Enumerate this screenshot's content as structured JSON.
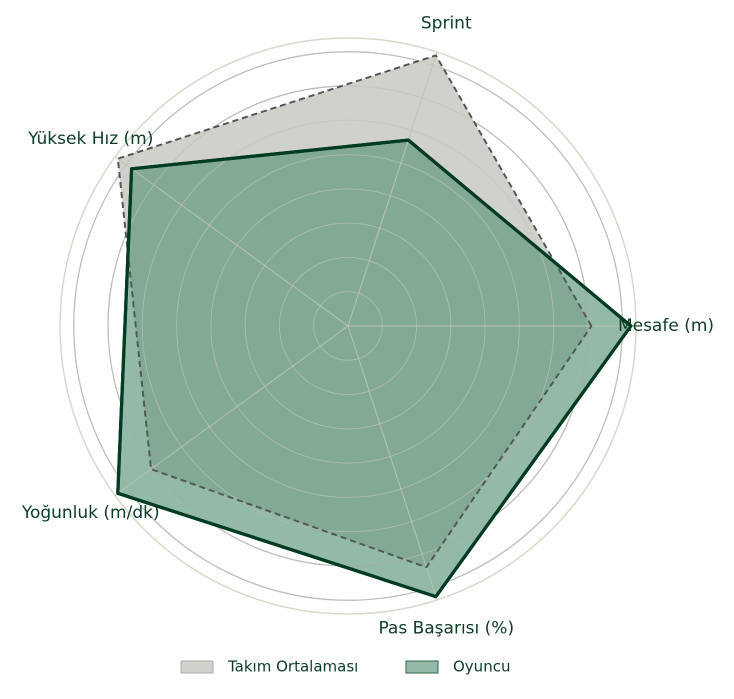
{
  "chart_data": {
    "type": "radar",
    "categories": [
      "Mesafe (m)",
      "Sprint",
      "Yüksek Hız (m)",
      "Yoğunluk (m/dk)",
      "Pas Başarısı (%)"
    ],
    "ylim": [
      0,
      8.4
    ],
    "yticks": [
      1,
      2,
      3,
      4,
      5,
      6,
      7,
      8
    ],
    "grid": true,
    "series": [
      {
        "name": "Takım Ortalaması",
        "color": "#c9c9c3",
        "values": [
          7.1,
          8.3,
          8.3,
          7.1,
          7.4
        ]
      },
      {
        "name": "Oyuncu",
        "color": "#4f9070",
        "values": [
          8.25,
          5.7,
          7.8,
          8.3,
          8.3
        ]
      }
    ]
  }
}
